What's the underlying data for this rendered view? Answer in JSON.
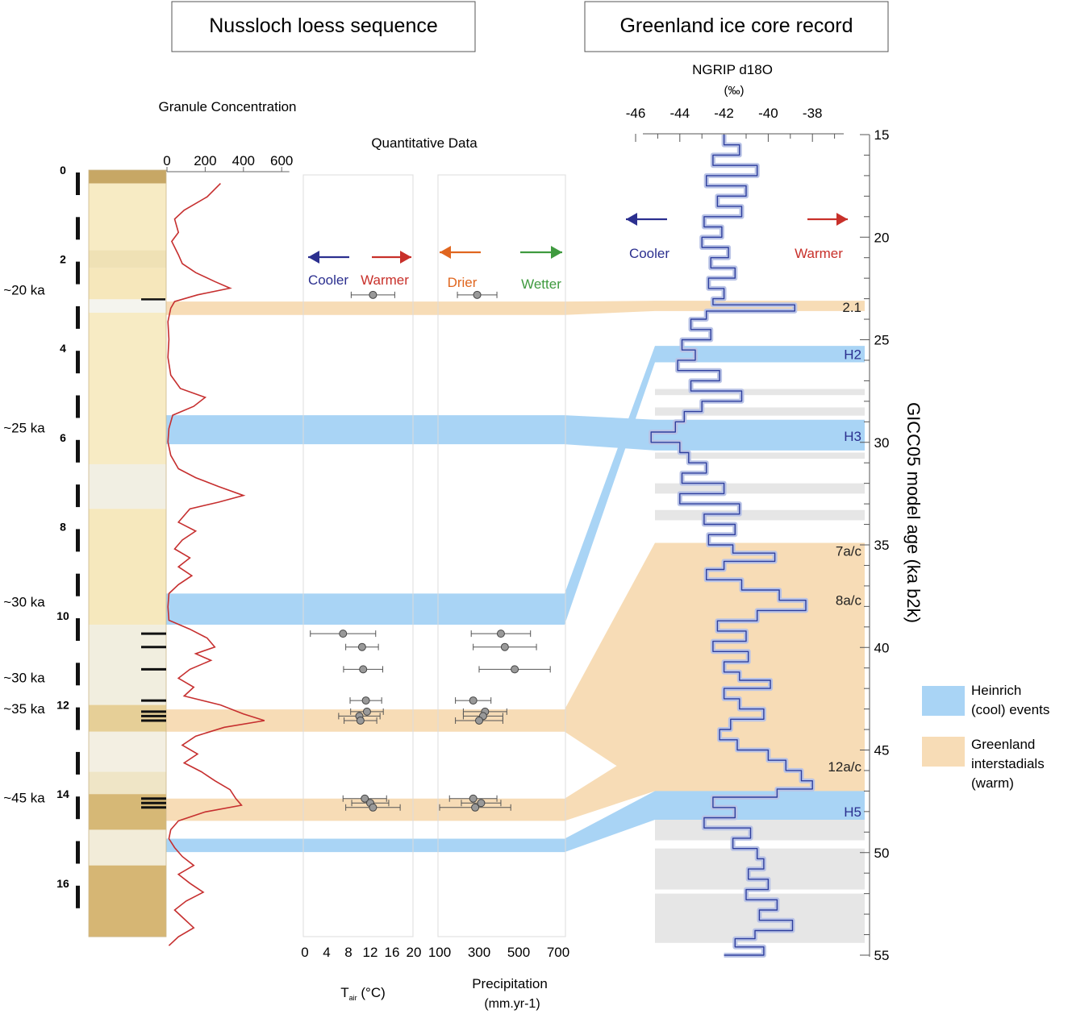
{
  "colors": {
    "heinrich": "#a9d4f5",
    "interstadial": "#f7dcb6",
    "greenband": "#e6e6e6",
    "granule_line": "#c62f2f",
    "ngrip_line": "#2f3f9e",
    "ngrip_fill": "#b9c3e6",
    "cooler": "#2b2f8f",
    "warmer": "#c8302a",
    "drier": "#e0661f",
    "wetter": "#3f9a3f",
    "marker": "#999999"
  },
  "chart_data": [
    {
      "type": "line",
      "title": "Nussloch loess sequence",
      "depth_ticks": [
        0,
        2,
        4,
        6,
        8,
        10,
        12,
        14,
        16
      ],
      "age_labels": [
        {
          "label": "~20 ka",
          "depth": 2.7
        },
        {
          "label": "~25 ka",
          "depth": 5.8
        },
        {
          "label": "~30 ka",
          "depth": 9.7
        },
        {
          "label": "~30 ka",
          "depth": 11.4
        },
        {
          "label": "~35 ka",
          "depth": 12.1
        },
        {
          "label": "~45 ka",
          "depth": 14.1
        }
      ],
      "sample_depths": [
        10.4,
        10.7,
        11.2,
        11.9,
        12.15,
        12.25,
        12.35,
        14.1,
        14.2,
        14.3
      ],
      "granule_concentration": {
        "title": "Granule Concentration",
        "xticks": [
          0,
          200,
          400,
          600
        ],
        "xlim": [
          0,
          640
        ],
        "points": [
          [
            0.3,
            280
          ],
          [
            0.6,
            210
          ],
          [
            0.9,
            90
          ],
          [
            1.1,
            40
          ],
          [
            1.4,
            60
          ],
          [
            1.6,
            25
          ],
          [
            1.9,
            60
          ],
          [
            2.1,
            80
          ],
          [
            2.3,
            150
          ],
          [
            2.5,
            250
          ],
          [
            2.65,
            330
          ],
          [
            2.8,
            160
          ],
          [
            2.95,
            40
          ],
          [
            3.1,
            20
          ],
          [
            3.4,
            5
          ],
          [
            3.8,
            10
          ],
          [
            4.2,
            5
          ],
          [
            4.6,
            20
          ],
          [
            4.9,
            70
          ],
          [
            5.1,
            200
          ],
          [
            5.3,
            140
          ],
          [
            5.5,
            30
          ],
          [
            5.8,
            10
          ],
          [
            6.1,
            5
          ],
          [
            6.4,
            20
          ],
          [
            6.7,
            60
          ],
          [
            6.9,
            150
          ],
          [
            7.1,
            270
          ],
          [
            7.3,
            400
          ],
          [
            7.45,
            270
          ],
          [
            7.6,
            120
          ],
          [
            7.9,
            60
          ],
          [
            8.1,
            150
          ],
          [
            8.3,
            80
          ],
          [
            8.5,
            40
          ],
          [
            8.7,
            120
          ],
          [
            8.9,
            60
          ],
          [
            9.1,
            130
          ],
          [
            9.3,
            60
          ],
          [
            9.5,
            10
          ],
          [
            9.8,
            5
          ],
          [
            10.1,
            10
          ],
          [
            10.3,
            120
          ],
          [
            10.5,
            210
          ],
          [
            10.7,
            250
          ],
          [
            10.85,
            150
          ],
          [
            11.0,
            230
          ],
          [
            11.2,
            120
          ],
          [
            11.4,
            60
          ],
          [
            11.6,
            140
          ],
          [
            11.8,
            90
          ],
          [
            12.0,
            280
          ],
          [
            12.2,
            400
          ],
          [
            12.35,
            510
          ],
          [
            12.5,
            300
          ],
          [
            12.7,
            150
          ],
          [
            12.9,
            80
          ],
          [
            13.1,
            160
          ],
          [
            13.3,
            90
          ],
          [
            13.5,
            180
          ],
          [
            13.7,
            250
          ],
          [
            13.9,
            330
          ],
          [
            14.1,
            360
          ],
          [
            14.25,
            390
          ],
          [
            14.4,
            200
          ],
          [
            14.6,
            60
          ],
          [
            14.8,
            20
          ],
          [
            15.0,
            10
          ],
          [
            15.2,
            40
          ],
          [
            15.4,
            80
          ],
          [
            15.6,
            140
          ],
          [
            15.8,
            60
          ],
          [
            16.0,
            120
          ],
          [
            16.2,
            190
          ],
          [
            16.4,
            100
          ],
          [
            16.6,
            40
          ],
          [
            16.8,
            90
          ],
          [
            17.0,
            140
          ],
          [
            17.2,
            60
          ],
          [
            17.4,
            10
          ]
        ]
      }
    },
    {
      "type": "scatter",
      "title": "Quantitative Data",
      "air_temperature": {
        "xlabel": "T",
        "xlabel_sub": "air",
        "xlabel_unit": " (°C)",
        "xticks": [
          0,
          4,
          8,
          12,
          16,
          20
        ],
        "xlim": [
          0,
          20
        ],
        "points": [
          {
            "depth": 2.8,
            "value": 12.5,
            "err": 4.0
          },
          {
            "depth": 10.4,
            "value": 7.0,
            "err": 6.0
          },
          {
            "depth": 10.7,
            "value": 10.5,
            "err": 3.0
          },
          {
            "depth": 11.2,
            "value": 10.7,
            "err": 3.6
          },
          {
            "depth": 11.9,
            "value": 11.2,
            "err": 2.9
          },
          {
            "depth": 12.15,
            "value": 11.4,
            "err": 3.0
          },
          {
            "depth": 12.25,
            "value": 10.0,
            "err": 3.8
          },
          {
            "depth": 12.35,
            "value": 10.2,
            "err": 3.0
          },
          {
            "depth": 14.1,
            "value": 11.0,
            "err": 4.0
          },
          {
            "depth": 14.2,
            "value": 12.0,
            "err": 3.4
          },
          {
            "depth": 14.3,
            "value": 12.5,
            "err": 5.0
          }
        ]
      },
      "precipitation": {
        "xlabel": "Precipitation",
        "xlabel_unit": "(mm.yr-1)",
        "xticks": [
          100,
          300,
          500,
          700
        ],
        "xlim": [
          100,
          700
        ],
        "points": [
          {
            "depth": 2.8,
            "value": 290,
            "err": 100
          },
          {
            "depth": 10.4,
            "value": 410,
            "err": 150
          },
          {
            "depth": 10.7,
            "value": 430,
            "err": 160
          },
          {
            "depth": 11.2,
            "value": 480,
            "err": 180
          },
          {
            "depth": 11.9,
            "value": 270,
            "err": 90
          },
          {
            "depth": 12.15,
            "value": 330,
            "err": 110
          },
          {
            "depth": 12.25,
            "value": 320,
            "err": 100
          },
          {
            "depth": 12.35,
            "value": 300,
            "err": 120
          },
          {
            "depth": 14.1,
            "value": 270,
            "err": 120
          },
          {
            "depth": 14.2,
            "value": 310,
            "err": 100
          },
          {
            "depth": 14.3,
            "value": 280,
            "err": 180
          }
        ]
      },
      "arrows": {
        "cooler": "Cooler",
        "warmer": "Warmer",
        "drier": "Drier",
        "wetter": "Wetter"
      }
    },
    {
      "type": "line",
      "title": "Greenland ice core record",
      "xlabel": "NGRIP d18O",
      "xlabel_unit": "(‰)",
      "ylabel": "GICC05 model age (ka b2k)",
      "xticks": [
        -46,
        -44,
        -42,
        -40,
        -38
      ],
      "xlim": [
        -46.3,
        -37.3
      ],
      "yticks": [
        15,
        20,
        25,
        30,
        35,
        40,
        45,
        50,
        55
      ],
      "ylim": [
        15,
        55
      ],
      "arrows": {
        "cooler": "Cooler",
        "warmer": "Warmer"
      },
      "event_labels": [
        {
          "label": "2.1",
          "age": 23.4,
          "kind": "interstadial"
        },
        {
          "label": "H2",
          "age": 25.7,
          "kind": "heinrich"
        },
        {
          "label": "H3",
          "age": 29.7,
          "kind": "heinrich"
        },
        {
          "label": "7a/c",
          "age": 35.3,
          "kind": "interstadial"
        },
        {
          "label": "8a/c",
          "age": 37.7,
          "kind": "interstadial"
        },
        {
          "label": "12a/c",
          "age": 45.8,
          "kind": "interstadial"
        },
        {
          "label": "H5",
          "age": 48.0,
          "kind": "heinrich"
        }
      ],
      "heinrich_bands": [
        [
          25.3,
          26.1
        ],
        [
          28.9,
          30.4
        ],
        [
          47.0,
          48.4
        ]
      ],
      "interstadial_bands": [
        [
          23.1,
          23.6
        ],
        [
          34.9,
          35.7
        ],
        [
          36.9,
          38.2
        ],
        [
          44.6,
          47.0
        ]
      ],
      "grey_bands": [
        [
          27.4,
          27.7
        ],
        [
          28.3,
          28.7
        ],
        [
          30.5,
          30.8
        ],
        [
          32.0,
          32.5
        ],
        [
          33.3,
          33.8
        ],
        [
          39.9,
          40.3
        ],
        [
          40.9,
          41.5
        ],
        [
          42.4,
          43.4
        ],
        [
          48.4,
          49.4
        ],
        [
          49.8,
          51.8
        ],
        [
          52.0,
          54.4
        ]
      ],
      "series": [
        {
          "points": [
            [
              15.0,
              -42.0
            ],
            [
              15.5,
              -41.3
            ],
            [
              16.0,
              -42.5
            ],
            [
              16.5,
              -40.5
            ],
            [
              17.0,
              -42.8
            ],
            [
              17.5,
              -41.0
            ],
            [
              18.0,
              -42.3
            ],
            [
              18.5,
              -41.2
            ],
            [
              19.0,
              -42.9
            ],
            [
              19.5,
              -42.1
            ],
            [
              20.0,
              -43.0
            ],
            [
              20.5,
              -41.8
            ],
            [
              21.0,
              -42.6
            ],
            [
              21.5,
              -41.5
            ],
            [
              22.0,
              -42.7
            ],
            [
              22.5,
              -42.0
            ],
            [
              23.0,
              -42.5
            ],
            [
              23.3,
              -38.8
            ],
            [
              23.6,
              -42.8
            ],
            [
              24.0,
              -43.5
            ],
            [
              24.5,
              -42.6
            ],
            [
              25.0,
              -43.9
            ],
            [
              25.5,
              -43.3
            ],
            [
              26.0,
              -44.1
            ],
            [
              26.5,
              -42.2
            ],
            [
              27.0,
              -43.5
            ],
            [
              27.5,
              -41.2
            ],
            [
              28.0,
              -43.0
            ],
            [
              28.5,
              -43.8
            ],
            [
              29.0,
              -44.2
            ],
            [
              29.5,
              -45.3
            ],
            [
              30.0,
              -44.0
            ],
            [
              30.5,
              -43.6
            ],
            [
              31.0,
              -42.8
            ],
            [
              31.5,
              -43.9
            ],
            [
              32.0,
              -42.0
            ],
            [
              32.5,
              -44.0
            ],
            [
              33.0,
              -41.3
            ],
            [
              33.5,
              -42.9
            ],
            [
              34.0,
              -41.5
            ],
            [
              34.5,
              -42.7
            ],
            [
              35.0,
              -41.6
            ],
            [
              35.4,
              -39.7
            ],
            [
              35.8,
              -42.0
            ],
            [
              36.2,
              -42.8
            ],
            [
              36.7,
              -41.2
            ],
            [
              37.2,
              -39.5
            ],
            [
              37.7,
              -38.3
            ],
            [
              38.2,
              -40.5
            ],
            [
              38.7,
              -42.3
            ],
            [
              39.2,
              -41.0
            ],
            [
              39.7,
              -42.5
            ],
            [
              40.2,
              -40.9
            ],
            [
              40.7,
              -42.0
            ],
            [
              41.2,
              -41.3
            ],
            [
              41.6,
              -39.9
            ],
            [
              42.0,
              -42.0
            ],
            [
              42.5,
              -41.3
            ],
            [
              43.0,
              -40.2
            ],
            [
              43.5,
              -41.7
            ],
            [
              44.0,
              -42.2
            ],
            [
              44.5,
              -41.4
            ],
            [
              45.0,
              -40.0
            ],
            [
              45.5,
              -39.2
            ],
            [
              46.0,
              -38.5
            ],
            [
              46.5,
              -38.0
            ],
            [
              46.9,
              -39.6
            ],
            [
              47.3,
              -42.5
            ],
            [
              47.8,
              -41.5
            ],
            [
              48.3,
              -42.9
            ],
            [
              48.8,
              -40.8
            ],
            [
              49.3,
              -41.6
            ],
            [
              49.8,
              -40.5
            ],
            [
              50.3,
              -40.2
            ],
            [
              50.8,
              -40.9
            ],
            [
              51.3,
              -40.0
            ],
            [
              51.8,
              -41.0
            ],
            [
              52.3,
              -39.6
            ],
            [
              52.8,
              -40.4
            ],
            [
              53.3,
              -38.9
            ],
            [
              53.8,
              -40.6
            ],
            [
              54.2,
              -41.5
            ],
            [
              54.6,
              -40.2
            ],
            [
              55.0,
              -42.0
            ]
          ]
        }
      ]
    }
  ],
  "legend": {
    "heinrich": [
      "Heinrich",
      "(cool) events"
    ],
    "interstadial": [
      "Greenland",
      "interstadials",
      "(warm)"
    ]
  }
}
